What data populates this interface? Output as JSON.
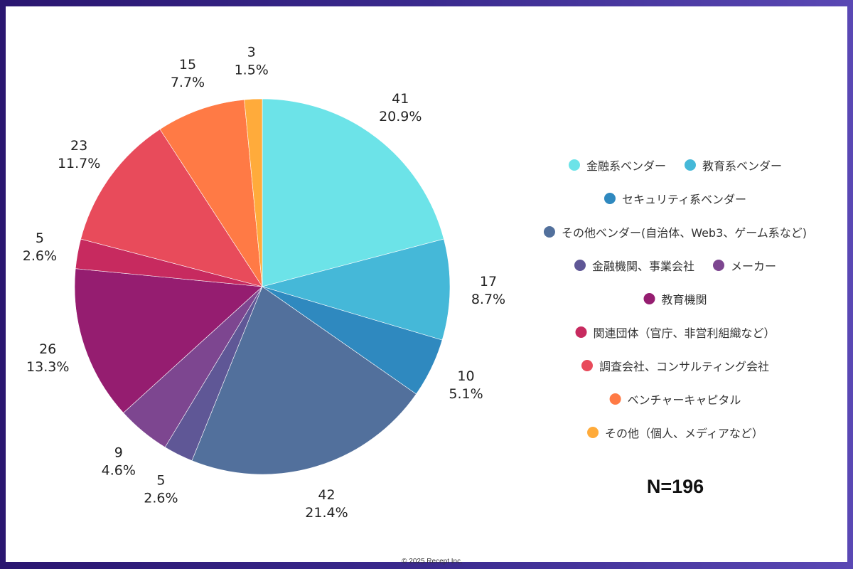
{
  "chart_data": {
    "type": "pie",
    "categories": [
      "金融系ベンダー",
      "教育系ベンダー",
      "セキュリティ系ベンダー",
      "その他ベンダー(自治体、Web3、ゲーム系など)",
      "金融機関、事業会社",
      "メーカー",
      "教育機関",
      "関連団体（官庁、非営利組織など）",
      "調査会社、コンサルティング会社",
      "ベンチャーキャピタル",
      "その他（個人、メディアなど）"
    ],
    "values": [
      41,
      17,
      10,
      42,
      5,
      9,
      26,
      5,
      23,
      15,
      3
    ],
    "percentages": [
      "20.9%",
      "8.7%",
      "5.1%",
      "21.4%",
      "2.6%",
      "4.6%",
      "13.3%",
      "2.6%",
      "11.7%",
      "7.7%",
      "1.5%"
    ],
    "colors": [
      "#6ce3e8",
      "#45b8d8",
      "#2f89bf",
      "#52709c",
      "#5f5796",
      "#7d4690",
      "#951d70",
      "#c72a5f",
      "#e84b5b",
      "#ff7a45",
      "#ffab3b"
    ],
    "legend_position": "right"
  },
  "sample_size": "N=196",
  "copyright": "© 2025 Recept Inc."
}
